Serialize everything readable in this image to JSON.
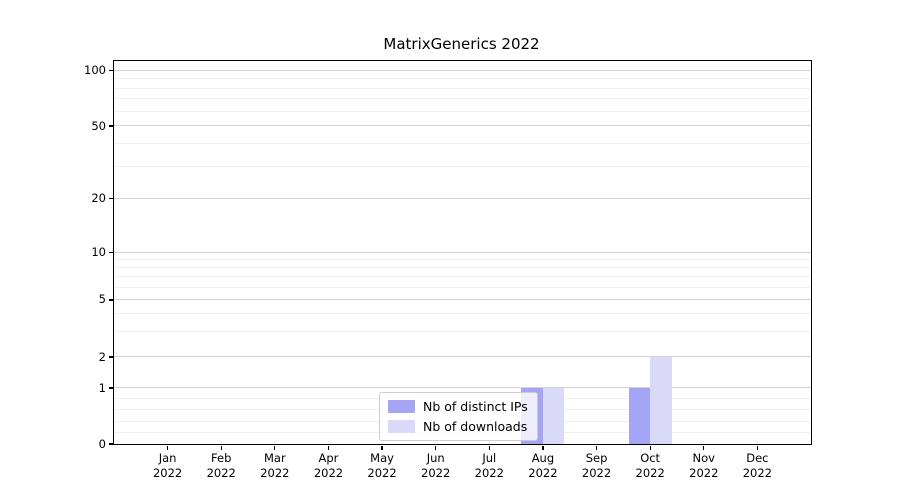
{
  "chart_data": {
    "type": "bar",
    "title": "MatrixGenerics 2022",
    "categories": [
      {
        "month": "Jan",
        "year": "2022"
      },
      {
        "month": "Feb",
        "year": "2022"
      },
      {
        "month": "Mar",
        "year": "2022"
      },
      {
        "month": "Apr",
        "year": "2022"
      },
      {
        "month": "May",
        "year": "2022"
      },
      {
        "month": "Jun",
        "year": "2022"
      },
      {
        "month": "Jul",
        "year": "2022"
      },
      {
        "month": "Aug",
        "year": "2022"
      },
      {
        "month": "Sep",
        "year": "2022"
      },
      {
        "month": "Oct",
        "year": "2022"
      },
      {
        "month": "Nov",
        "year": "2022"
      },
      {
        "month": "Dec",
        "year": "2022"
      }
    ],
    "series": [
      {
        "id": "distinct-ips",
        "name": "Nb of distinct IPs",
        "color": "#a5a5f5",
        "values": [
          0,
          0,
          0,
          0,
          0,
          0,
          0,
          1,
          0,
          1,
          0,
          0
        ]
      },
      {
        "id": "downloads",
        "name": "Nb of downloads",
        "color": "#dadaf8",
        "values": [
          0,
          0,
          0,
          0,
          0,
          0,
          0,
          1,
          0,
          2,
          0,
          0
        ]
      }
    ],
    "y_axis": {
      "scale": "symlog",
      "major_ticks": [
        0,
        1,
        2,
        5,
        10,
        20,
        50,
        100
      ],
      "minor_ticks": [
        0.2,
        0.4,
        0.6,
        0.8,
        3,
        4,
        6,
        7,
        8,
        9,
        30,
        40,
        60,
        70,
        80,
        90
      ],
      "range": [
        0,
        110
      ]
    },
    "xlabel": "",
    "ylabel": "",
    "grid": {
      "on": true,
      "which": "both",
      "major_color": "#d2d2d2",
      "minor_color": "#efefef"
    },
    "legend": {
      "position": "lower-center",
      "entries": [
        "Nb of distinct IPs",
        "Nb of downloads"
      ]
    }
  }
}
